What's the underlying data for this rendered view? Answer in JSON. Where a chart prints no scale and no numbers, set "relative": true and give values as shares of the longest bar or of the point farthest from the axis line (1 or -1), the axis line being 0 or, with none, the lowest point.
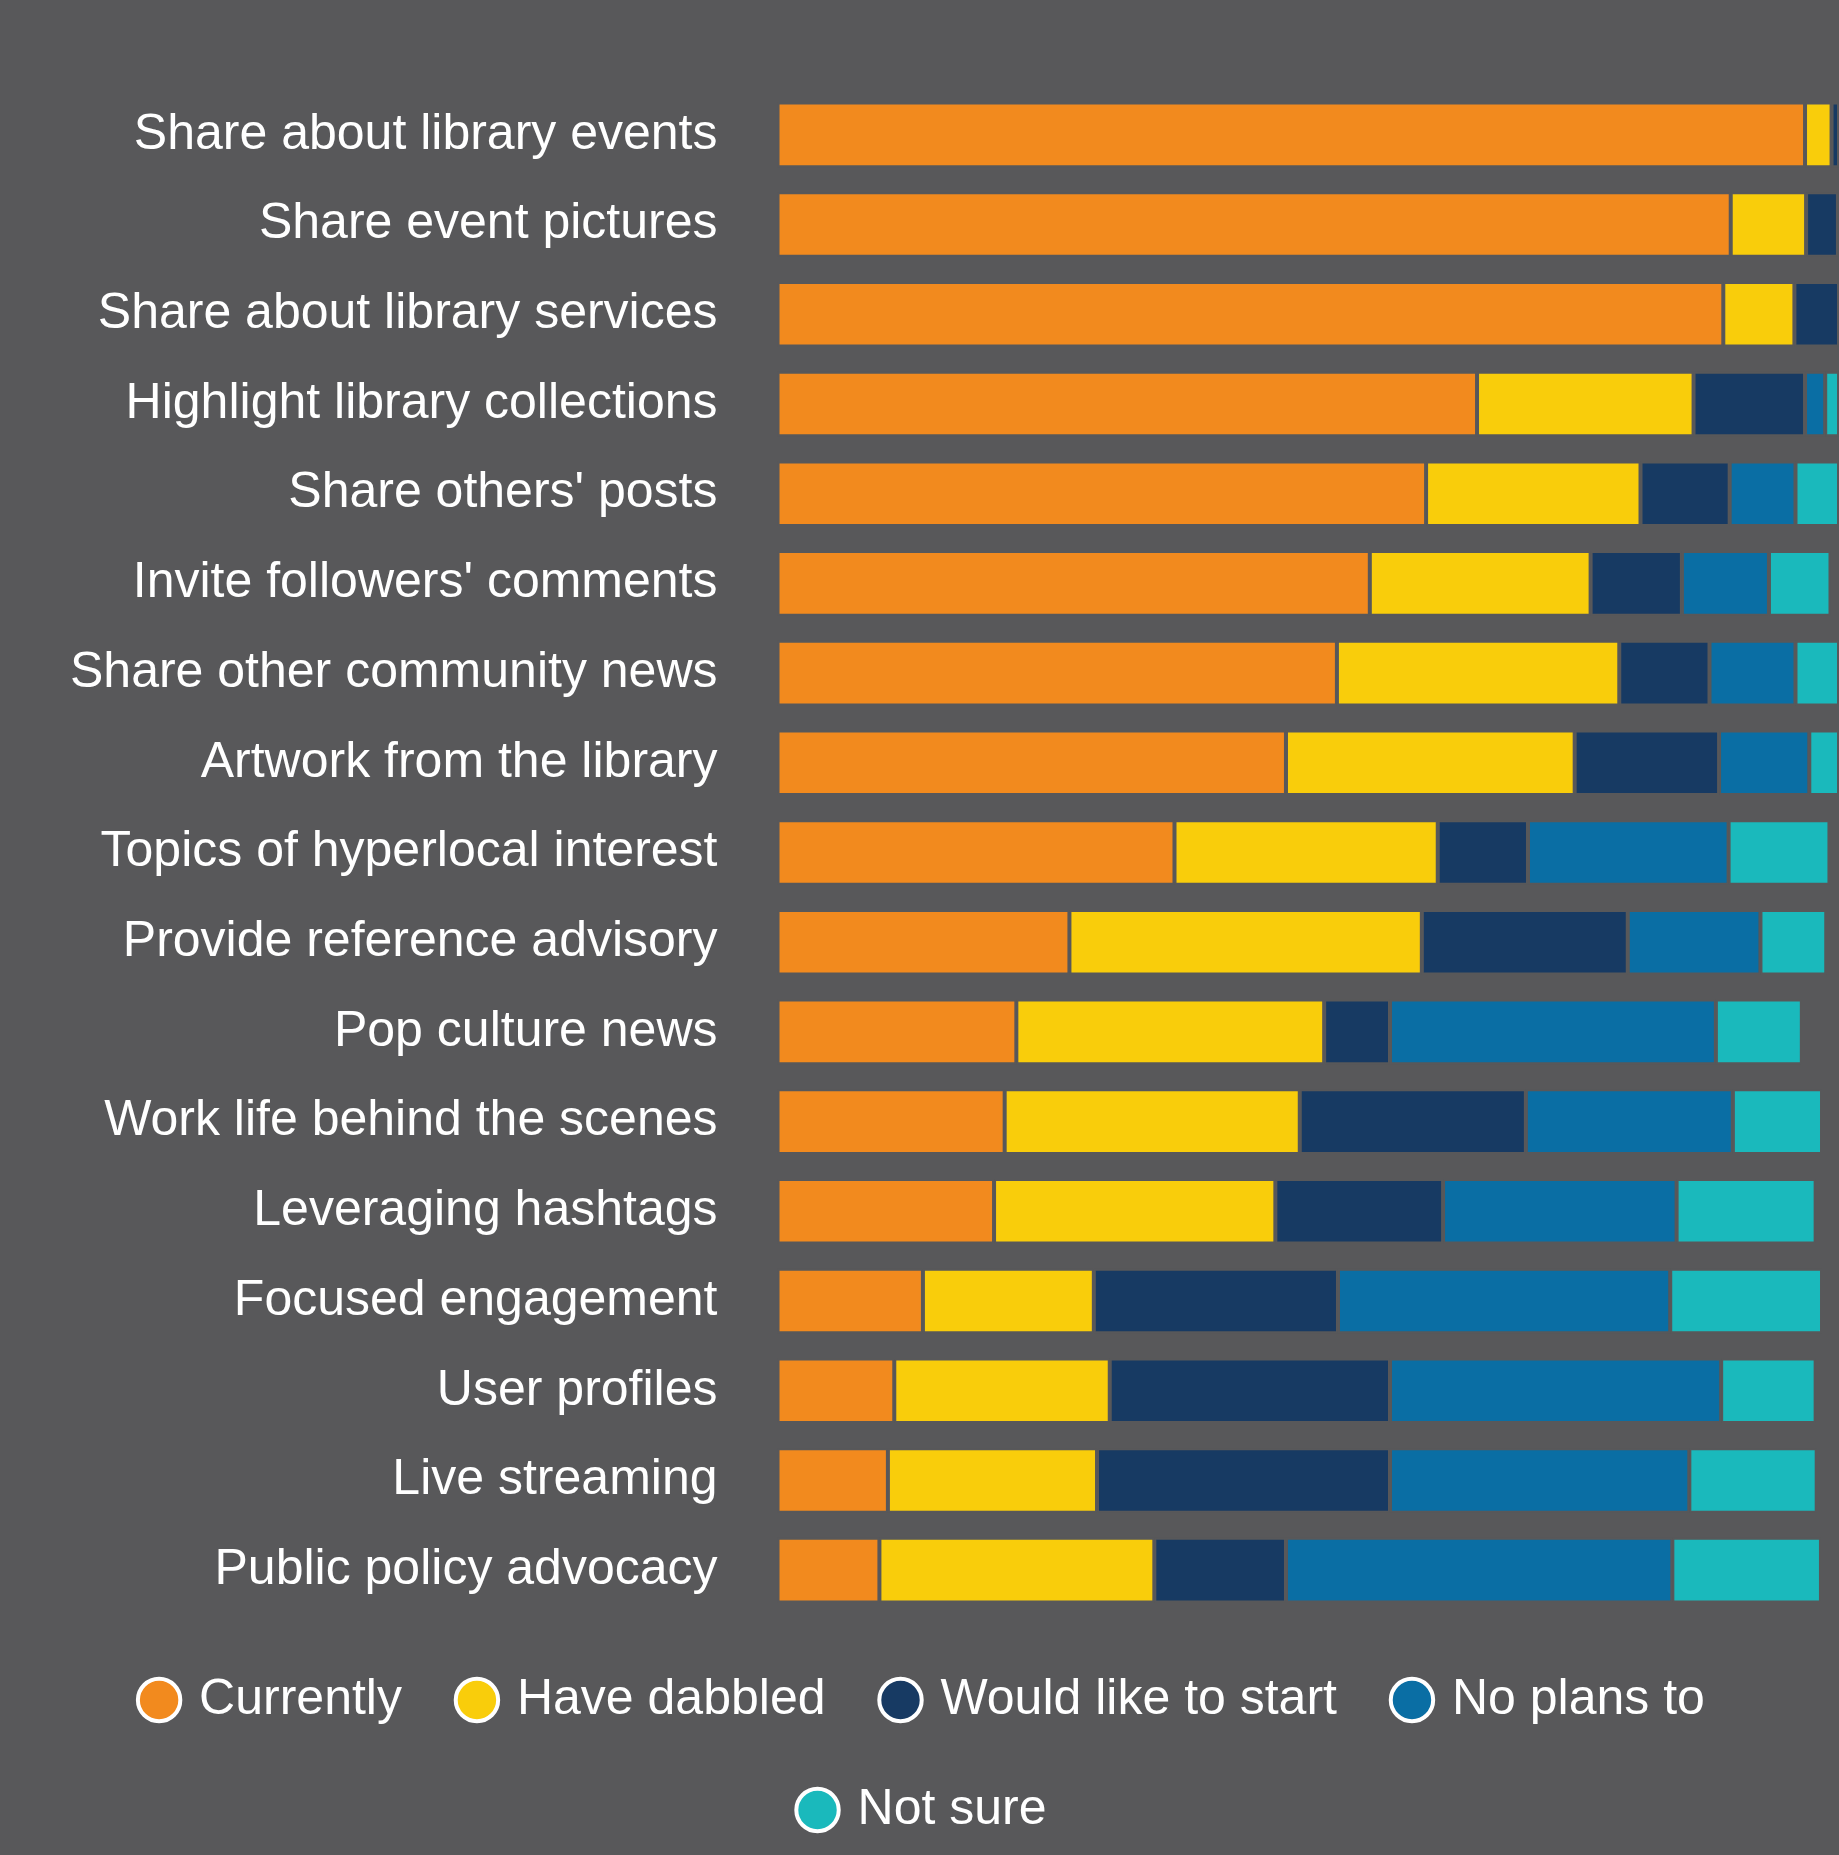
{
  "chart_data": {
    "type": "bar",
    "orientation": "horizontal",
    "stacked": true,
    "relative": true,
    "legend": "bottom",
    "grid": false,
    "categories": [
      "Share about library events",
      "Share event pictures",
      "Share about library services",
      "Highlight library collections",
      "Share others' posts",
      "Invite followers' comments",
      "Share other community news",
      "Artwork from the library",
      "Topics of hyperlocal interest",
      "Provide reference advisory",
      "Pop culture news",
      "Work life behind the scenes",
      "Leveraging hashtags",
      "Focused engagement",
      "User profiles",
      "Live streaming",
      "Public policy advocacy"
    ],
    "series": [
      {
        "name": "Currently",
        "color": "#f28a1e",
        "values": [
          0.968,
          0.898,
          0.891,
          0.659,
          0.611,
          0.558,
          0.527,
          0.479,
          0.374,
          0.275,
          0.225,
          0.214,
          0.204,
          0.137,
          0.11,
          0.104,
          0.096
        ]
      },
      {
        "name": "Have dabbled",
        "color": "#f9cd0b",
        "values": [
          0.025,
          0.071,
          0.067,
          0.204,
          0.202,
          0.208,
          0.266,
          0.272,
          0.248,
          0.332,
          0.29,
          0.278,
          0.265,
          0.161,
          0.203,
          0.197,
          0.259
        ]
      },
      {
        "name": "Would like to start",
        "color": "#173a63",
        "values": [
          0.007,
          0.03,
          0.042,
          0.105,
          0.084,
          0.086,
          0.085,
          0.136,
          0.085,
          0.194,
          0.062,
          0.213,
          0.158,
          0.23,
          0.264,
          0.276,
          0.124
        ]
      },
      {
        "name": "No plans to",
        "color": "#0a6ea4",
        "values": [
          null,
          null,
          null,
          0.019,
          0.062,
          0.082,
          0.081,
          0.085,
          0.189,
          0.125,
          0.307,
          0.195,
          0.22,
          0.313,
          0.312,
          0.282,
          0.364
        ]
      },
      {
        "name": "Not sure",
        "color": "#1ab9bc",
        "values": [
          null,
          null,
          null,
          0.013,
          0.041,
          0.058,
          0.041,
          0.028,
          0.095,
          0.062,
          0.081,
          0.084,
          0.131,
          0.143,
          0.089,
          0.12,
          0.14
        ]
      }
    ]
  }
}
